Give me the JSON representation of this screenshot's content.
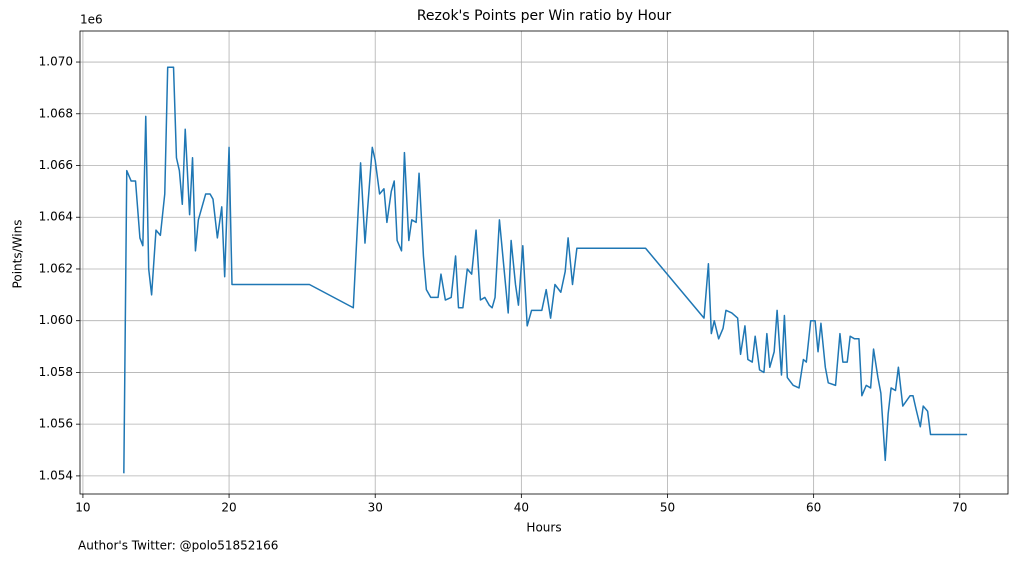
{
  "chart_data": {
    "type": "line",
    "title": "Rezok's Points per Win ratio by Hour",
    "x_label": "Hours",
    "y_label": "Points/Wins",
    "y_offset_label": "1e6",
    "footnote": "Author's Twitter: @polo51852166",
    "grid": true,
    "xlim": [
      9.8,
      73.3
    ],
    "xticks": [
      10,
      20,
      30,
      40,
      50,
      60,
      70
    ],
    "ylim": [
      1.0533,
      1.0712
    ],
    "yticks": [
      1.054,
      1.056,
      1.058,
      {
        "value": 1.06,
        "label": "1.060"
      },
      1.062,
      1.064,
      1.066,
      1.068,
      {
        "value": 1.07,
        "label": "1.070"
      }
    ],
    "x": [
      12.8,
      13.0,
      13.3,
      13.6,
      13.9,
      14.1,
      14.3,
      14.5,
      14.7,
      15.0,
      15.3,
      15.6,
      15.8,
      16.2,
      16.4,
      16.6,
      16.8,
      17.0,
      17.3,
      17.5,
      17.7,
      17.9,
      18.4,
      18.7,
      18.9,
      19.2,
      19.5,
      19.7,
      20.0,
      20.2,
      25.5,
      28.5,
      29.0,
      29.3,
      29.8,
      30.0,
      30.3,
      30.6,
      30.8,
      31.1,
      31.3,
      31.5,
      31.8,
      32.0,
      32.3,
      32.5,
      32.8,
      33.0,
      33.3,
      33.5,
      33.8,
      34.3,
      34.5,
      34.8,
      35.2,
      35.5,
      35.7,
      36.0,
      36.3,
      36.6,
      36.9,
      37.2,
      37.5,
      37.8,
      38.0,
      38.2,
      38.5,
      38.8,
      39.1,
      39.3,
      39.6,
      39.8,
      40.1,
      40.4,
      40.7,
      41.4,
      41.7,
      42.0,
      42.3,
      42.7,
      43.0,
      43.2,
      43.5,
      43.8,
      48.5,
      52.5,
      52.8,
      53.0,
      53.2,
      53.5,
      53.8,
      54.0,
      54.4,
      54.8,
      55.0,
      55.3,
      55.5,
      55.8,
      56.0,
      56.3,
      56.6,
      56.8,
      57.0,
      57.3,
      57.5,
      57.8,
      58.0,
      58.2,
      58.6,
      59.0,
      59.3,
      59.5,
      59.8,
      60.1,
      60.3,
      60.5,
      60.8,
      61.0,
      61.5,
      61.8,
      62.0,
      62.3,
      62.5,
      62.8,
      63.1,
      63.3,
      63.6,
      63.9,
      64.1,
      64.4,
      64.6,
      64.9,
      65.1,
      65.3,
      65.6,
      65.8,
      66.1,
      66.6,
      66.8,
      67.0,
      67.3,
      67.5,
      67.8,
      68.0,
      70.5
    ],
    "series": [
      {
        "color": "#1f77b4",
        "values": [
          1.0541,
          1.0658,
          1.0654,
          1.0654,
          1.0632,
          1.0629,
          1.0679,
          1.062,
          1.061,
          1.0635,
          1.0633,
          1.0649,
          1.0698,
          1.0698,
          1.0663,
          1.0658,
          1.0645,
          1.0674,
          1.0641,
          1.0663,
          1.0627,
          1.0639,
          1.0649,
          1.0649,
          1.0647,
          1.0632,
          1.0644,
          1.0617,
          1.0667,
          1.0614,
          1.0614,
          1.0605,
          1.0661,
          1.063,
          1.0667,
          1.0662,
          1.0649,
          1.0651,
          1.0638,
          1.065,
          1.0654,
          1.0631,
          1.0627,
          1.0665,
          1.0631,
          1.0639,
          1.0638,
          1.0657,
          1.0625,
          1.0612,
          1.0609,
          1.0609,
          1.0618,
          1.0608,
          1.0609,
          1.0625,
          1.0605,
          1.0605,
          1.062,
          1.0618,
          1.0635,
          1.0608,
          1.0609,
          1.0606,
          1.0605,
          1.0609,
          1.0639,
          1.0621,
          1.0603,
          1.0631,
          1.0614,
          1.0606,
          1.0629,
          1.0598,
          1.0604,
          1.0604,
          1.0612,
          1.0601,
          1.0614,
          1.0611,
          1.0619,
          1.0632,
          1.0614,
          1.0628,
          1.0628,
          1.0601,
          1.0622,
          1.0595,
          1.06,
          1.0593,
          1.0597,
          1.0604,
          1.0603,
          1.0601,
          1.0587,
          1.0598,
          1.0585,
          1.0584,
          1.0594,
          1.0581,
          1.058,
          1.0595,
          1.0582,
          1.0588,
          1.0604,
          1.0579,
          1.0602,
          1.0578,
          1.0575,
          1.0574,
          1.0585,
          1.0584,
          1.06,
          1.06,
          1.0588,
          1.0599,
          1.0582,
          1.0576,
          1.0575,
          1.0595,
          1.0584,
          1.0584,
          1.0594,
          1.0593,
          1.0593,
          1.0571,
          1.0575,
          1.0574,
          1.0589,
          1.0578,
          1.0572,
          1.0546,
          1.0564,
          1.0574,
          1.0573,
          1.0582,
          1.0567,
          1.0571,
          1.0571,
          1.0566,
          1.0559,
          1.0567,
          1.0565,
          1.0556,
          1.0556
        ]
      }
    ]
  }
}
